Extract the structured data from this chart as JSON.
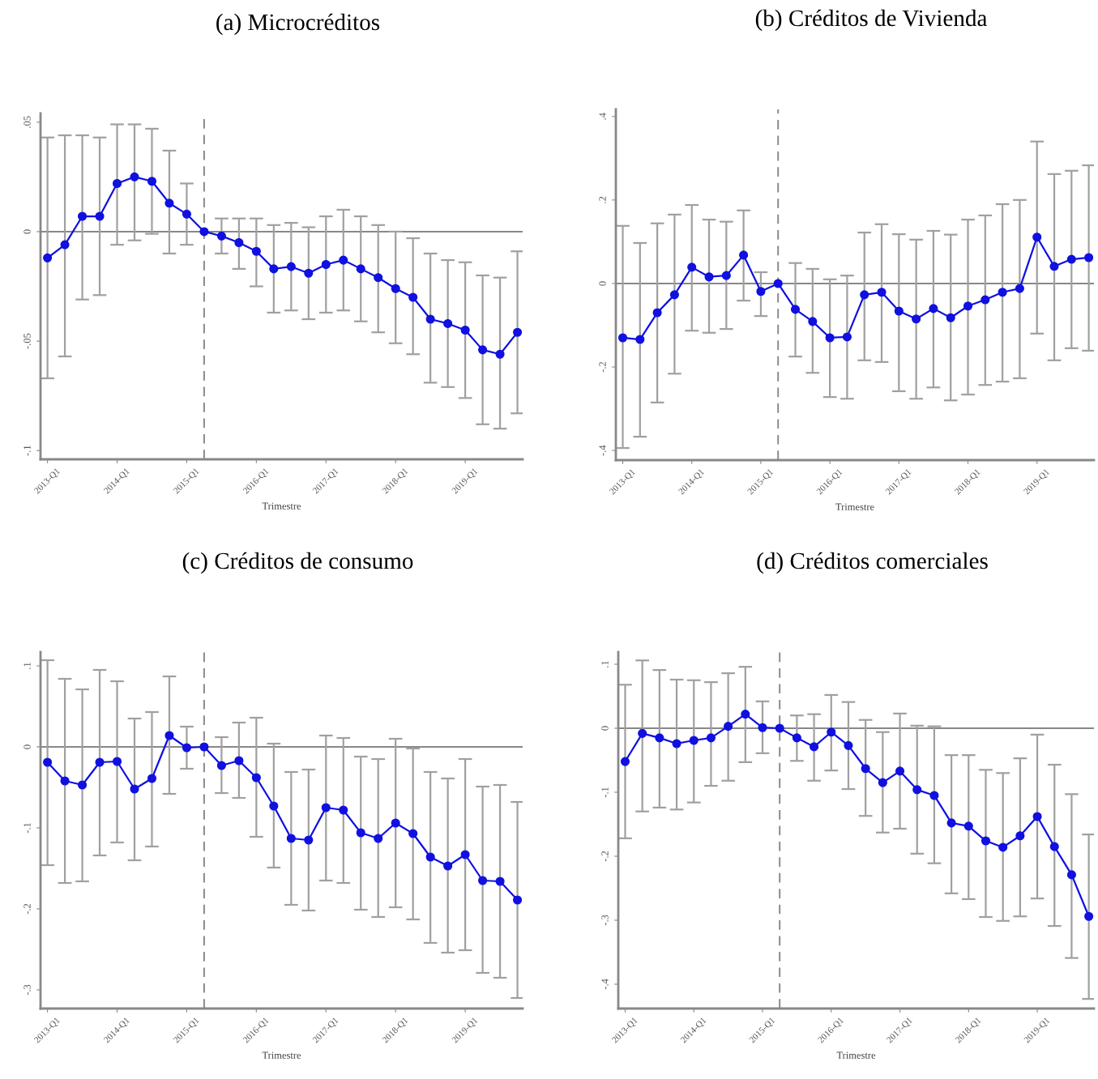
{
  "chart_data": [
    {
      "type": "line",
      "title": "(a) Microcréditos",
      "xlabel": "Trimestre",
      "categories": [
        "2013-Q1",
        null,
        null,
        null,
        "2014-Q1",
        null,
        null,
        null,
        "2015-Q1",
        null,
        null,
        null,
        "2016-Q1",
        null,
        null,
        null,
        "2017-Q1",
        null,
        null,
        null,
        "2018-Q1",
        null,
        null,
        null,
        "2019-Q1",
        null,
        null,
        null
      ],
      "series": [
        {
          "color": "#1010e0",
          "values": [
            -0.012,
            -0.006,
            0.007,
            0.007,
            0.022,
            0.025,
            0.023,
            0.013,
            0.008,
            0,
            -0.002,
            -0.005,
            -0.009,
            -0.017,
            -0.016,
            -0.019,
            -0.015,
            -0.013,
            -0.017,
            -0.021,
            -0.026,
            -0.03,
            -0.04,
            -0.042,
            -0.045,
            -0.054,
            -0.056,
            -0.046
          ],
          "errors": [
            [
              -0.067,
              0.043
            ],
            [
              -0.057,
              0.044
            ],
            [
              -0.031,
              0.044
            ],
            [
              -0.029,
              0.043
            ],
            [
              -0.006,
              0.049
            ],
            [
              -0.004,
              0.049
            ],
            [
              -0.001,
              0.047
            ],
            [
              -0.01,
              0.037
            ],
            [
              -0.006,
              0.022
            ],
            null,
            [
              -0.01,
              0.006
            ],
            [
              -0.017,
              0.006
            ],
            [
              -0.025,
              0.006
            ],
            [
              -0.037,
              0.003
            ],
            [
              -0.036,
              0.004
            ],
            [
              -0.04,
              0.002
            ],
            [
              -0.037,
              0.007
            ],
            [
              -0.036,
              0.01
            ],
            [
              -0.041,
              0.007
            ],
            [
              -0.046,
              0.003
            ],
            [
              -0.051,
              0
            ],
            [
              -0.056,
              -0.003
            ],
            [
              -0.069,
              -0.01
            ],
            [
              -0.071,
              -0.013
            ],
            [
              -0.076,
              -0.014
            ],
            [
              -0.088,
              -0.02
            ],
            [
              -0.09,
              -0.021
            ],
            [
              -0.083,
              -0.009
            ]
          ]
        }
      ],
      "ylim": [
        -0.104,
        0.054
      ],
      "yticks": [
        {
          "value": 0.05,
          "label": ".05"
        },
        0,
        {
          "value": -0.05,
          "label": "-.05"
        },
        {
          "value": -0.1,
          "label": "-.1"
        }
      ],
      "ref_lines": [
        {
          "axis": "y",
          "value": 0,
          "color": "#888888",
          "line_style": "solid"
        }
      ],
      "marker": "circle",
      "line_style": "solid",
      "grid": false
    },
    {
      "type": "line",
      "title": "(b) Créditos de Vivienda",
      "xlabel": "Trimestre",
      "categories": [
        "2013-Q1",
        null,
        null,
        null,
        "2014-Q1",
        null,
        null,
        null,
        "2015-Q1",
        null,
        null,
        null,
        "2016-Q1",
        null,
        null,
        null,
        "2017-Q1",
        null,
        null,
        null,
        "2018-Q1",
        null,
        null,
        null,
        "2019-Q1",
        null,
        null,
        null
      ],
      "series": [
        {
          "color": "#1010e0",
          "values": [
            -0.13,
            -0.134,
            -0.07,
            -0.027,
            0.039,
            0.016,
            0.019,
            0.068,
            -0.019,
            0,
            -0.062,
            -0.091,
            -0.13,
            -0.128,
            -0.027,
            -0.021,
            -0.066,
            -0.085,
            -0.06,
            -0.082,
            -0.054,
            -0.039,
            -0.021,
            -0.012,
            0.111,
            0.041,
            0.058,
            0.062
          ],
          "errors": [
            [
              -0.394,
              0.138
            ],
            [
              -0.367,
              0.097
            ],
            [
              -0.285,
              0.144
            ],
            [
              -0.216,
              0.165
            ],
            [
              -0.113,
              0.188
            ],
            [
              -0.118,
              0.153
            ],
            [
              -0.109,
              0.148
            ],
            [
              -0.041,
              0.175
            ],
            [
              -0.078,
              0.027
            ],
            null,
            [
              -0.175,
              0.049
            ],
            [
              -0.214,
              0.035
            ],
            [
              -0.272,
              0.01
            ],
            [
              -0.276,
              0.019
            ],
            [
              -0.184,
              0.122
            ],
            [
              -0.188,
              0.142
            ],
            [
              -0.258,
              0.118
            ],
            [
              -0.276,
              0.105
            ],
            [
              -0.249,
              0.126
            ],
            [
              -0.28,
              0.117
            ],
            [
              -0.266,
              0.153
            ],
            [
              -0.243,
              0.163
            ],
            [
              -0.235,
              0.19
            ],
            [
              -0.227,
              0.2
            ],
            [
              -0.12,
              0.34
            ],
            [
              -0.184,
              0.262
            ],
            [
              -0.155,
              0.27
            ],
            [
              -0.161,
              0.283
            ]
          ]
        }
      ],
      "ylim": [
        -0.423,
        0.417
      ],
      "yticks": [
        {
          "value": 0.4,
          "label": ".4"
        },
        {
          "value": 0.2,
          "label": ".2"
        },
        0,
        {
          "value": -0.2,
          "label": "-.2"
        },
        {
          "value": -0.4,
          "label": "-.4"
        }
      ],
      "ref_lines": [
        {
          "axis": "y",
          "value": 0,
          "color": "#888888",
          "line_style": "solid"
        }
      ],
      "marker": "circle",
      "line_style": "solid",
      "grid": false
    },
    {
      "type": "line",
      "title": "(c) Créditos de consumo",
      "xlabel": "Trimestre",
      "categories": [
        "2013-Q1",
        null,
        null,
        null,
        "2014-Q1",
        null,
        null,
        null,
        "2015-Q1",
        null,
        null,
        null,
        "2016-Q1",
        null,
        null,
        null,
        "2017-Q1",
        null,
        null,
        null,
        "2018-Q1",
        null,
        null,
        null,
        "2019-Q1",
        null,
        null,
        null
      ],
      "series": [
        {
          "color": "#1010e0",
          "values": [
            -0.019,
            -0.042,
            -0.047,
            -0.019,
            -0.018,
            -0.052,
            -0.039,
            0.014,
            -0.001,
            0,
            -0.023,
            -0.017,
            -0.038,
            -0.073,
            -0.113,
            -0.115,
            -0.075,
            -0.078,
            -0.106,
            -0.113,
            -0.094,
            -0.107,
            -0.136,
            -0.147,
            -0.133,
            -0.165,
            -0.166,
            -0.189
          ],
          "errors": [
            [
              -0.146,
              0.107
            ],
            [
              -0.168,
              0.084
            ],
            [
              -0.166,
              0.071
            ],
            [
              -0.134,
              0.095
            ],
            [
              -0.118,
              0.081
            ],
            [
              -0.14,
              0.035
            ],
            [
              -0.123,
              0.043
            ],
            [
              -0.058,
              0.087
            ],
            [
              -0.027,
              0.025
            ],
            null,
            [
              -0.057,
              0.012
            ],
            [
              -0.063,
              0.03
            ],
            [
              -0.111,
              0.036
            ],
            [
              -0.149,
              0.004
            ],
            [
              -0.195,
              -0.031
            ],
            [
              -0.202,
              -0.028
            ],
            [
              -0.165,
              0.014
            ],
            [
              -0.168,
              0.011
            ],
            [
              -0.201,
              -0.012
            ],
            [
              -0.21,
              -0.015
            ],
            [
              -0.198,
              0.01
            ],
            [
              -0.213,
              -0.002
            ],
            [
              -0.242,
              -0.031
            ],
            [
              -0.254,
              -0.039
            ],
            [
              -0.251,
              -0.015
            ],
            [
              -0.279,
              -0.049
            ],
            [
              -0.285,
              -0.047
            ],
            [
              -0.31,
              -0.068
            ]
          ]
        }
      ],
      "ylim": [
        -0.323,
        0.117
      ],
      "yticks": [
        {
          "value": 0.1,
          "label": ".1"
        },
        0,
        {
          "value": -0.1,
          "label": "-.1"
        },
        {
          "value": -0.2,
          "label": "-.2"
        },
        {
          "value": -0.3,
          "label": "-.3"
        }
      ],
      "ref_lines": [
        {
          "axis": "y",
          "value": 0,
          "color": "#888888",
          "line_style": "solid"
        }
      ],
      "marker": "circle",
      "line_style": "solid",
      "grid": false
    },
    {
      "type": "line",
      "title": "(d) Créditos comerciales",
      "xlabel": "Trimestre",
      "categories": [
        "2013-Q1",
        null,
        null,
        null,
        "2014-Q1",
        null,
        null,
        null,
        "2015-Q1",
        null,
        null,
        null,
        "2016-Q1",
        null,
        null,
        null,
        "2017-Q1",
        null,
        null,
        null,
        "2018-Q1",
        null,
        null,
        null,
        "2019-Q1",
        null,
        null,
        null
      ],
      "series": [
        {
          "color": "#1010e0",
          "values": [
            -0.052,
            -0.008,
            -0.015,
            -0.024,
            -0.019,
            -0.015,
            0.003,
            0.022,
            0.001,
            0,
            -0.015,
            -0.029,
            -0.006,
            -0.027,
            -0.063,
            -0.085,
            -0.067,
            -0.096,
            -0.105,
            -0.148,
            -0.153,
            -0.176,
            -0.186,
            -0.168,
            -0.138,
            -0.185,
            -0.229,
            -0.294
          ],
          "errors": [
            [
              -0.172,
              0.068
            ],
            [
              -0.13,
              0.106
            ],
            [
              -0.124,
              0.091
            ],
            [
              -0.127,
              0.076
            ],
            [
              -0.116,
              0.075
            ],
            [
              -0.09,
              0.072
            ],
            [
              -0.082,
              0.086
            ],
            [
              -0.053,
              0.096
            ],
            [
              -0.039,
              0.042
            ],
            null,
            [
              -0.051,
              0.02
            ],
            [
              -0.082,
              0.022
            ],
            [
              -0.066,
              0.052
            ],
            [
              -0.095,
              0.041
            ],
            [
              -0.137,
              0.013
            ],
            [
              -0.163,
              -0.006
            ],
            [
              -0.157,
              0.023
            ],
            [
              -0.196,
              0.004
            ],
            [
              -0.211,
              0.003
            ],
            [
              -0.258,
              -0.042
            ],
            [
              -0.267,
              -0.042
            ],
            [
              -0.295,
              -0.065
            ],
            [
              -0.301,
              -0.07
            ],
            [
              -0.294,
              -0.047
            ],
            [
              -0.266,
              -0.01
            ],
            [
              -0.309,
              -0.057
            ],
            [
              -0.359,
              -0.103
            ],
            [
              -0.423,
              -0.166
            ]
          ]
        }
      ],
      "ylim": [
        -0.438,
        0.119
      ],
      "yticks": [
        {
          "value": 0.1,
          "label": ".1"
        },
        0,
        {
          "value": -0.1,
          "label": "-.1"
        },
        {
          "value": -0.2,
          "label": "-.2"
        },
        {
          "value": -0.3,
          "label": "-.3"
        },
        {
          "value": -0.4,
          "label": "-.4"
        }
      ],
      "ref_lines": [
        {
          "axis": "y",
          "value": 0,
          "color": "#888888",
          "line_style": "solid"
        }
      ],
      "marker": "circle",
      "line_style": "solid",
      "grid": false
    }
  ]
}
